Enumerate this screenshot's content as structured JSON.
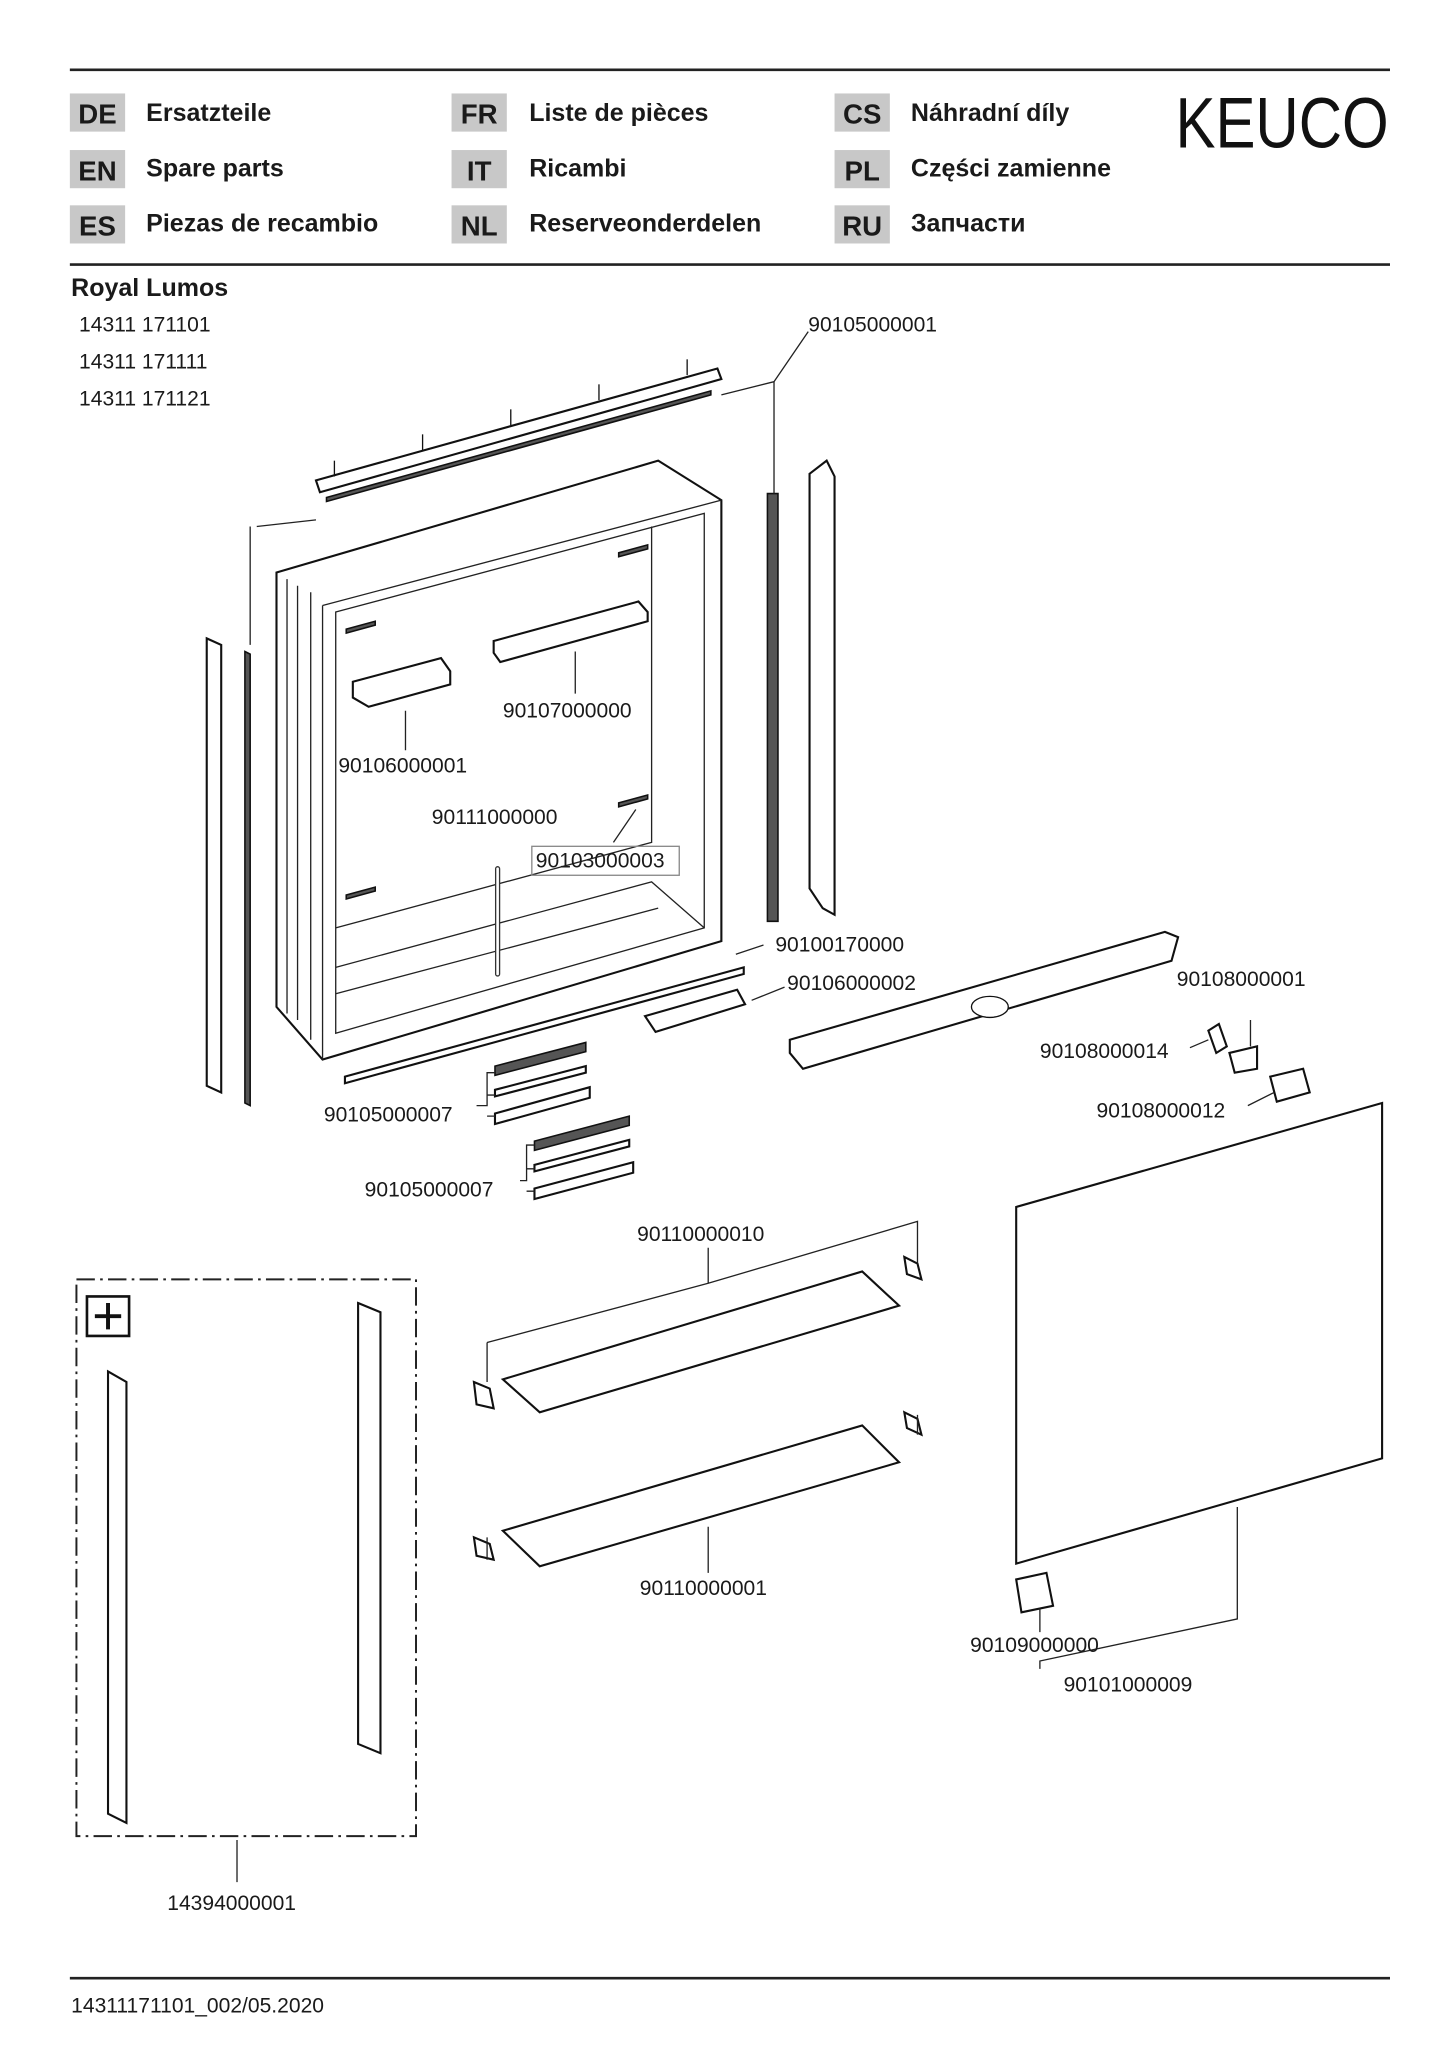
{
  "header": {
    "languages": [
      {
        "code": "DE",
        "label": "Ersatzteile"
      },
      {
        "code": "EN",
        "label": "Spare parts"
      },
      {
        "code": "ES",
        "label": "Piezas de recambio"
      },
      {
        "code": "FR",
        "label": "Liste de pièces"
      },
      {
        "code": "IT",
        "label": "Ricambi"
      },
      {
        "code": "NL",
        "label": "Reserveonderdelen"
      },
      {
        "code": "CS",
        "label": "Náhradní díly"
      },
      {
        "code": "PL",
        "label": "Części zamienne"
      },
      {
        "code": "RU",
        "label": "Запчасти"
      }
    ],
    "brand": "KEUCO",
    "badge_color": "#c8c8c8"
  },
  "product": {
    "name": "Royal Lumos",
    "models": [
      "14311 171101",
      "14311 171111",
      "14311 171121"
    ]
  },
  "parts": [
    "90105000001",
    "90107000000",
    "90106000001",
    "90111000000",
    "90103000003",
    "90100170000",
    "90106000002",
    "90108000001",
    "90108000014",
    "90108000012",
    "90105000007",
    "90105000007",
    "90110000010",
    "90110000001",
    "90109000000",
    "90101000009",
    "14394000001"
  ],
  "optional_icon": "plus-icon",
  "footer": {
    "doc_id": "14311171101_002/05.2020"
  }
}
